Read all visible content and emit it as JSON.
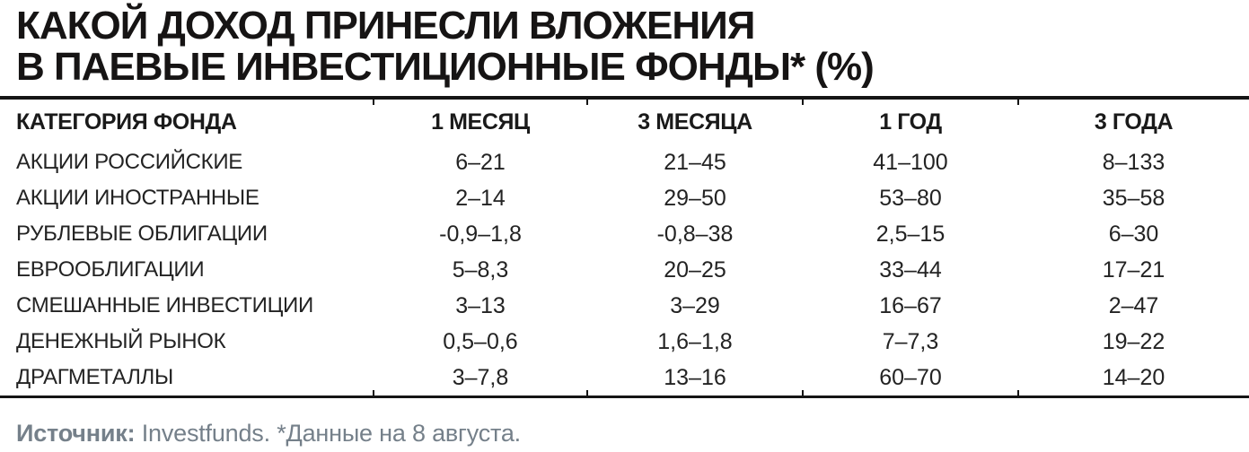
{
  "title_lines": [
    "КАКОЙ ДОХОД ПРИНЕСЛИ ВЛОЖЕНИЯ",
    "В ПАЕВЫЕ ИНВЕСТИЦИОННЫЕ ФОНДЫ* (%)"
  ],
  "chart_data": {
    "type": "table",
    "title": "КАКОЙ ДОХОД ПРИНЕСЛИ ВЛОЖЕНИЯ В ПАЕВЫЕ ИНВЕСТИЦИОННЫЕ ФОНДЫ* (%)",
    "columns": [
      "КАТЕГОРИЯ ФОНДА",
      "1 МЕСЯЦ",
      "3 МЕСЯЦА",
      "1 ГОД",
      "3 ГОДА"
    ],
    "rows": [
      [
        "АКЦИИ РОССИЙСКИЕ",
        "6–21",
        "21–45",
        "41–100",
        "8–133"
      ],
      [
        "АКЦИИ ИНОСТРАННЫЕ",
        "2–14",
        "29–50",
        "53–80",
        "35–58"
      ],
      [
        "РУБЛЕВЫЕ ОБЛИГАЦИИ",
        "-0,9–1,8",
        "-0,8–38",
        "2,5–15",
        "6–30"
      ],
      [
        "ЕВРООБЛИГАЦИИ",
        "5–8,3",
        "20–25",
        "33–44",
        "17–21"
      ],
      [
        "СМЕШАННЫЕ ИНВЕСТИЦИИ",
        "3–13",
        "3–29",
        "16–67",
        "2–47"
      ],
      [
        "ДЕНЕЖНЫЙ РЫНОК",
        "0,5–0,6",
        "1,6–1,8",
        "7–7,3",
        "19–22"
      ],
      [
        "ДРАГМЕТАЛЛЫ",
        "3–7,8",
        "13–16",
        "60–70",
        "14–20"
      ]
    ],
    "source": "Источник: Investfunds. *Данные на 8 августа."
  },
  "footer": {
    "source_label": "Источник:",
    "source_rest": " Investfunds. *Данные на 8 августа."
  },
  "colors": {
    "text": "#1a1a1a",
    "rule": "#151515",
    "footer_gray": "#75808a",
    "background": "#ffffff"
  }
}
